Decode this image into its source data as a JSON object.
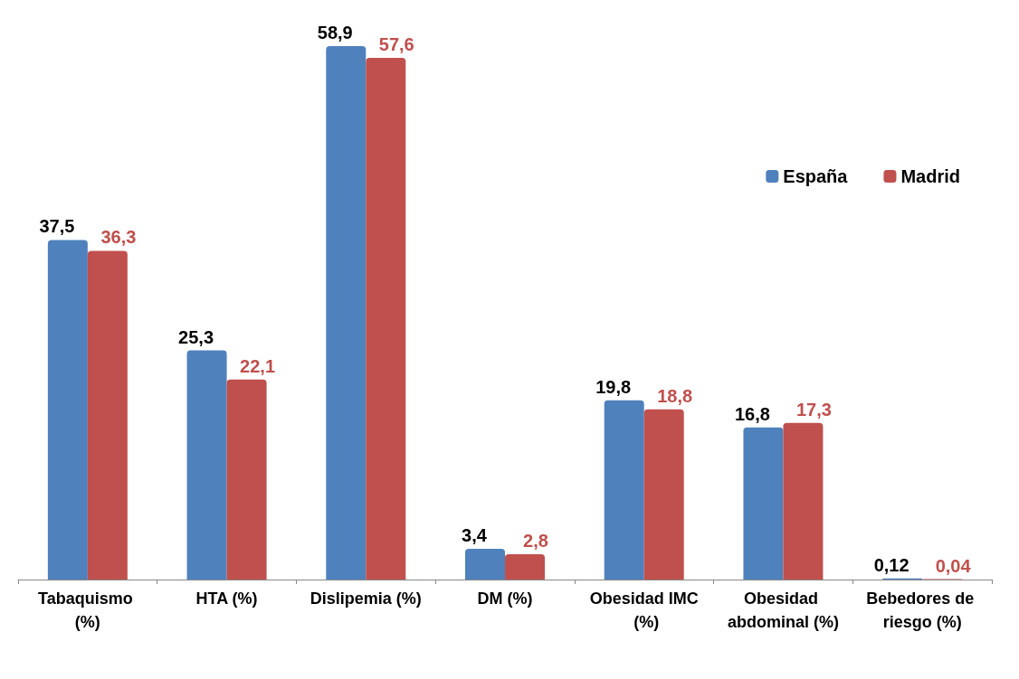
{
  "chart_data": {
    "type": "bar",
    "categories": [
      "Tabaquismo (%)",
      "HTA (%)",
      "Dislipemia (%)",
      "DM (%)",
      "Obesidad IMC (%)",
      "Obesidad abdominal (%)",
      "Bebedores de riesgo (%)"
    ],
    "series": [
      {
        "name": "España",
        "color": "#4f81bd",
        "values": [
          37.5,
          25.3,
          58.9,
          3.4,
          19.8,
          16.8,
          0.12
        ],
        "value_labels": [
          "37,5",
          "25,3",
          "58,9",
          "3,4",
          "19,8",
          "16,8",
          "0,12"
        ]
      },
      {
        "name": "Madrid",
        "color": "#c0504d",
        "values": [
          36.3,
          22.1,
          57.6,
          2.8,
          18.8,
          17.3,
          0.04
        ],
        "value_labels": [
          "36,3",
          "22,1",
          "57,6",
          "2,8",
          "18,8",
          "17,3",
          "0,04"
        ]
      }
    ],
    "legend": "top right"
  }
}
